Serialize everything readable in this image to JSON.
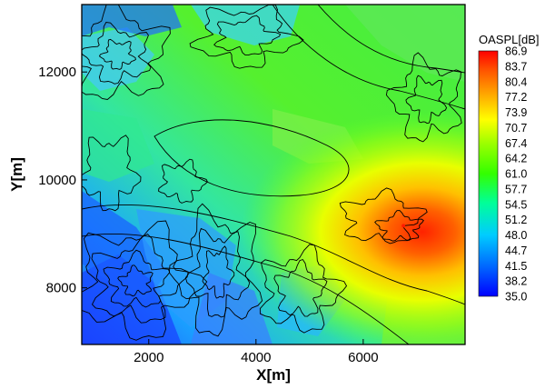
{
  "chart_data": {
    "type": "heatmap",
    "xlabel": "X[m]",
    "ylabel": "Y[m]",
    "xlim": [
      750,
      7900
    ],
    "ylim": [
      6950,
      13250
    ],
    "x_ticks": [
      2000,
      4000,
      6000
    ],
    "y_ticks": [
      8000,
      10000,
      12000
    ],
    "legend": {
      "title": "OASPL[dB]",
      "placement": "right",
      "levels": [
        86.9,
        83.7,
        80.4,
        77.2,
        73.9,
        70.7,
        67.4,
        64.2,
        61.0,
        57.7,
        54.5,
        51.2,
        48.0,
        44.7,
        41.5,
        38.2,
        35.0
      ]
    },
    "source": {
      "x": 6750,
      "y": 9150,
      "peak_db": 86.9
    },
    "contour_lines": true
  },
  "colors": {
    "scale": [
      "#0000ff",
      "#0066ff",
      "#00ccff",
      "#00ff99",
      "#33ff00",
      "#99ff00",
      "#ffff00",
      "#ffaa00",
      "#ff5500",
      "#ff0000"
    ]
  }
}
